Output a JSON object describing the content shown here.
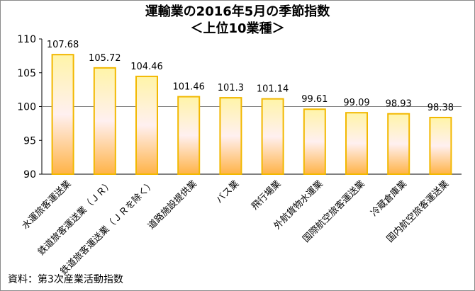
{
  "title_line1": "運輸業の2016年5月の季節指数",
  "title_line2": "＜上位10業種＞",
  "source": "資料：第3次産業活動指数",
  "chart_data": {
    "type": "bar",
    "categories": [
      "水運旅客運送業",
      "鉄道旅客運送業（ＪＲ）",
      "鉄道旅客運送業（ＪＲを除く）",
      "道路施設提供業",
      "バス業",
      "飛行場業",
      "外航貨物水運業",
      "国際航空旅客運送業",
      "冷蔵倉庫業",
      "国内航空旅客運送業"
    ],
    "values": [
      107.68,
      105.72,
      104.46,
      101.46,
      101.3,
      101.14,
      99.61,
      99.09,
      98.93,
      98.38
    ],
    "value_labels": [
      "107.68",
      "105.72",
      "104.46",
      "101.46",
      "101.3",
      "101.14",
      "99.61",
      "99.09",
      "98.93",
      "98.38"
    ],
    "y_ticks": [
      "90",
      "95",
      "100",
      "105",
      "110"
    ],
    "ylim": [
      90,
      110
    ],
    "reference_line": 100,
    "colors": {
      "bar_border": "#f2b800",
      "bar_fill_top": "#fff4a8",
      "bar_fill_mid": "#fff0f0",
      "bar_fill_bottom": "#ffb347",
      "axis": "#000000",
      "ref_line": "#808080"
    }
  }
}
